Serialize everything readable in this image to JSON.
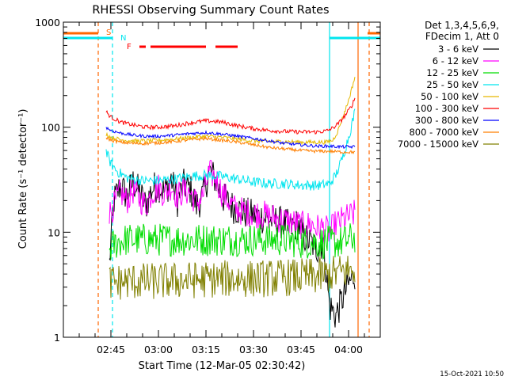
{
  "chart_data": {
    "type": "line",
    "title": "RHESSI Observing Summary Count Rates",
    "xlabel": "Start Time (12-Mar-05 02:30:42)",
    "ylabel": "Count Rate (s⁻¹ detector⁻¹)",
    "yscale": "log",
    "ylim": [
      1,
      1000
    ],
    "y_ticks": [
      {
        "value": 1,
        "label": "1"
      },
      {
        "value": 10,
        "label": "10"
      },
      {
        "value": 100,
        "label": "100"
      },
      {
        "value": 1000,
        "label": "1000"
      }
    ],
    "x_range_minutes": [
      0,
      100
    ],
    "x_ticks": [
      {
        "minute": 15,
        "label": "02:45"
      },
      {
        "minute": 30,
        "label": "03:00"
      },
      {
        "minute": 45,
        "label": "03:15"
      },
      {
        "minute": 60,
        "label": "03:30"
      },
      {
        "minute": 75,
        "label": "03:45"
      },
      {
        "minute": 90,
        "label": "04:00"
      }
    ],
    "legend": {
      "placement": "right",
      "header": [
        "Det 1,3,4,5,6,9,",
        "FDecim 1, Att 0"
      ]
    },
    "timestamp": "15-Oct-2021 10:50",
    "flags": [
      {
        "name": "S",
        "label": "S",
        "color": "#ff6600"
      },
      {
        "name": "N",
        "label": "N",
        "color": "#00e5ee"
      },
      {
        "name": "F",
        "label": "F",
        "color": "#ff0000"
      }
    ],
    "flag_bars": {
      "saa_minutes": [
        [
          0,
          11
        ],
        [
          96,
          100
        ]
      ],
      "night_minutes": [
        [
          0,
          15.5
        ],
        [
          84,
          100
        ]
      ],
      "flare_minutes": [
        [
          24,
          26
        ],
        [
          27.5,
          45
        ],
        [
          48,
          55
        ]
      ]
    },
    "vertical_lines_minutes": [
      {
        "minute": 11,
        "color": "#ff6600",
        "style": "dashed"
      },
      {
        "minute": 15.5,
        "color": "#00e5ee",
        "style": "dashed"
      },
      {
        "minute": 84,
        "color": "#00e5ee",
        "style": "solid"
      },
      {
        "minute": 93,
        "color": "#ff6600",
        "style": "solid"
      },
      {
        "minute": 96.5,
        "color": "#ff6600",
        "style": "dashed"
      }
    ],
    "series": [
      {
        "name": "3 - 6 keV",
        "color": "#000000",
        "noise": 0.16,
        "x": [
          14.5,
          16,
          18,
          20,
          22,
          24,
          26,
          28,
          30,
          32,
          34,
          36,
          38,
          40,
          42,
          44,
          46,
          48,
          50,
          52,
          54,
          56,
          58,
          60,
          62,
          64,
          66,
          68,
          70,
          72,
          74,
          76,
          78,
          80,
          82,
          84,
          86,
          88,
          90,
          92
        ],
        "y": [
          5,
          20,
          28,
          22,
          30,
          24,
          18,
          26,
          28,
          24,
          32,
          20,
          28,
          26,
          18,
          22,
          38,
          32,
          22,
          19,
          17,
          16,
          15,
          14.5,
          14,
          13.5,
          13,
          12.5,
          12,
          11,
          12,
          9,
          8,
          7,
          8,
          2,
          1.6,
          2.3,
          3.2,
          4
        ]
      },
      {
        "name": "6 - 12 keV",
        "color": "#ff00ff",
        "noise": 0.14,
        "x": [
          14.5,
          16,
          18,
          20,
          22,
          24,
          26,
          28,
          30,
          32,
          34,
          36,
          38,
          40,
          42,
          44,
          46,
          48,
          50,
          52,
          54,
          56,
          58,
          60,
          62,
          64,
          66,
          68,
          70,
          72,
          74,
          76,
          78,
          80,
          82,
          84,
          86,
          88,
          90,
          92
        ],
        "y": [
          15,
          18,
          24,
          20,
          25,
          21,
          18,
          24,
          27,
          23,
          28,
          22,
          25,
          24,
          19,
          22,
          37,
          33,
          24,
          20,
          17,
          16,
          15.5,
          15,
          15,
          14.5,
          14,
          13.5,
          13,
          12.5,
          12,
          11.5,
          12,
          11,
          11,
          10,
          12,
          13,
          14,
          15
        ]
      },
      {
        "name": "12 - 25 keV",
        "color": "#00dd00",
        "noise": 0.16,
        "x": [
          14.5,
          17,
          20,
          25,
          30,
          35,
          40,
          45,
          50,
          55,
          60,
          65,
          70,
          75,
          80,
          84,
          86,
          88,
          90,
          92
        ],
        "y": [
          7,
          8,
          8.5,
          8.5,
          8.5,
          8.5,
          8.5,
          8.5,
          8.5,
          8.5,
          8.5,
          8.5,
          8.5,
          8,
          8,
          8,
          8,
          8,
          8.5,
          9
        ]
      },
      {
        "name": "25 - 50 keV",
        "color": "#00e5ee",
        "noise": 0.05,
        "x": [
          13.5,
          15,
          17,
          20,
          25,
          30,
          35,
          40,
          45,
          50,
          55,
          60,
          65,
          70,
          75,
          78,
          81,
          84,
          86,
          88,
          90,
          92
        ],
        "y": [
          58,
          45,
          38,
          33,
          31,
          31,
          32,
          34,
          35,
          34,
          32,
          30,
          29,
          29,
          28,
          28,
          28,
          29,
          35,
          50,
          80,
          140
        ]
      },
      {
        "name": "50 - 100 keV",
        "color": "#e6b800",
        "noise": 0.02,
        "x": [
          13.5,
          15,
          18,
          22,
          26,
          30,
          35,
          40,
          45,
          50,
          55,
          60,
          65,
          70,
          75,
          80,
          83,
          85,
          86.5,
          88,
          90,
          92
        ],
        "y": [
          86,
          80,
          76,
          74,
          74,
          75,
          77,
          80,
          82,
          80,
          77,
          74,
          73,
          73,
          72,
          72,
          72,
          75,
          90,
          120,
          180,
          300
        ]
      },
      {
        "name": "100 - 300 keV",
        "color": "#ff0000",
        "noise": 0.02,
        "x": [
          13.5,
          15,
          18,
          22,
          26,
          30,
          35,
          40,
          45,
          50,
          55,
          60,
          65,
          70,
          75,
          80,
          83,
          85,
          87,
          89,
          91,
          92
        ],
        "y": [
          140,
          125,
          112,
          105,
          100,
          100,
          103,
          110,
          115,
          112,
          103,
          97,
          93,
          91,
          90,
          90,
          92,
          98,
          110,
          130,
          160,
          190
        ]
      },
      {
        "name": "300 - 800 keV",
        "color": "#0000ff",
        "noise": 0.015,
        "x": [
          13.5,
          15,
          18,
          22,
          26,
          30,
          35,
          40,
          45,
          50,
          55,
          60,
          65,
          70,
          75,
          80,
          84,
          88,
          92
        ],
        "y": [
          100,
          93,
          88,
          84,
          82,
          82,
          84,
          87,
          89,
          86,
          82,
          78,
          74,
          70,
          68,
          66,
          66,
          65,
          65
        ]
      },
      {
        "name": "800 - 7000 keV",
        "color": "#ff7f00",
        "noise": 0.015,
        "x": [
          13.5,
          15,
          18,
          22,
          26,
          30,
          35,
          40,
          45,
          50,
          55,
          60,
          65,
          70,
          75,
          80,
          84,
          88,
          92
        ],
        "y": [
          80,
          75,
          72,
          70,
          70,
          71,
          73,
          76,
          78,
          75,
          72,
          68,
          64,
          62,
          60,
          59,
          59,
          58,
          58
        ]
      },
      {
        "name": "7000 - 15000 keV",
        "color": "#808000",
        "noise": 0.18,
        "x": [
          14.5,
          20,
          30,
          40,
          50,
          60,
          70,
          80,
          85,
          88,
          92
        ],
        "y": [
          3.3,
          3.4,
          3.4,
          3.5,
          3.6,
          3.6,
          3.7,
          3.8,
          4,
          4.2,
          4.4
        ]
      }
    ]
  }
}
